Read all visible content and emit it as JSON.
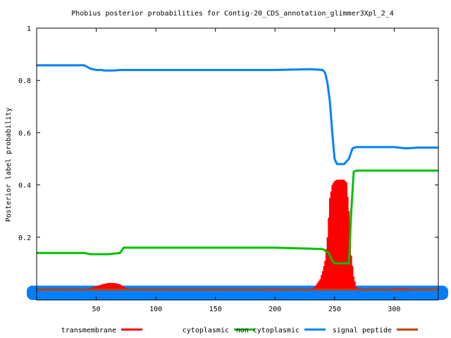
{
  "chart_data": {
    "type": "line",
    "title": "Phobius posterior probabilities for Contig-20_CDS_annotation_glimmer3Xpl_2_4",
    "xlabel": "",
    "ylabel": "Posterior label probability",
    "xlim": [
      0,
      337
    ],
    "ylim": [
      -0.04,
      1.0
    ],
    "x_ticks": [
      50,
      100,
      150,
      200,
      250,
      300
    ],
    "y_ticks": [
      0.2,
      0.4,
      0.6,
      0.8,
      1
    ],
    "grid": false,
    "legend_position": "bottom",
    "series": [
      {
        "name": "transmembrane",
        "style": "impulses",
        "color": "#ff0000",
        "points": [
          [
            0,
            0.0
          ],
          [
            40,
            0.0
          ],
          [
            45,
            0.005
          ],
          [
            50,
            0.012
          ],
          [
            55,
            0.02
          ],
          [
            60,
            0.025
          ],
          [
            65,
            0.025
          ],
          [
            70,
            0.02
          ],
          [
            75,
            0.005
          ],
          [
            80,
            0.0
          ],
          [
            180,
            0.0
          ],
          [
            190,
            0.004
          ],
          [
            200,
            0.004
          ],
          [
            210,
            0.0
          ],
          [
            232,
            0.0
          ],
          [
            235,
            0.02
          ],
          [
            238,
            0.04
          ],
          [
            240,
            0.07
          ],
          [
            242,
            0.11
          ],
          [
            244,
            0.2
          ],
          [
            246,
            0.35
          ],
          [
            248,
            0.4
          ],
          [
            250,
            0.415
          ],
          [
            252,
            0.42
          ],
          [
            255,
            0.42
          ],
          [
            258,
            0.42
          ],
          [
            260,
            0.41
          ],
          [
            262,
            0.3
          ],
          [
            264,
            0.13
          ],
          [
            266,
            0.05
          ],
          [
            268,
            0.01
          ],
          [
            270,
            0.0
          ],
          [
            290,
            0.0
          ],
          [
            300,
            0.005
          ],
          [
            310,
            0.005
          ],
          [
            320,
            0.0
          ],
          [
            337,
            0.0
          ]
        ]
      },
      {
        "name": "cytoplasmic",
        "style": "line",
        "color": "#00c000",
        "points": [
          [
            0,
            0.14
          ],
          [
            40,
            0.14
          ],
          [
            45,
            0.135
          ],
          [
            60,
            0.135
          ],
          [
            70,
            0.14
          ],
          [
            73,
            0.16
          ],
          [
            200,
            0.16
          ],
          [
            240,
            0.155
          ],
          [
            245,
            0.14
          ],
          [
            248,
            0.11
          ],
          [
            250,
            0.1
          ],
          [
            260,
            0.1
          ],
          [
            262,
            0.1
          ],
          [
            264,
            0.3
          ],
          [
            266,
            0.45
          ],
          [
            268,
            0.455
          ],
          [
            337,
            0.455
          ]
        ]
      },
      {
        "name": "non cytoplasmic",
        "style": "line",
        "color": "#0080ff",
        "points": [
          [
            0,
            0.858
          ],
          [
            40,
            0.858
          ],
          [
            45,
            0.845
          ],
          [
            50,
            0.84
          ],
          [
            55,
            0.84
          ],
          [
            56,
            0.838
          ],
          [
            65,
            0.838
          ],
          [
            70,
            0.84
          ],
          [
            100,
            0.84
          ],
          [
            200,
            0.84
          ],
          [
            230,
            0.843
          ],
          [
            240,
            0.84
          ],
          [
            242,
            0.83
          ],
          [
            244,
            0.79
          ],
          [
            246,
            0.72
          ],
          [
            248,
            0.6
          ],
          [
            250,
            0.5
          ],
          [
            252,
            0.48
          ],
          [
            258,
            0.48
          ],
          [
            262,
            0.5
          ],
          [
            265,
            0.54
          ],
          [
            268,
            0.545
          ],
          [
            300,
            0.545
          ],
          [
            310,
            0.54
          ],
          [
            320,
            0.543
          ],
          [
            337,
            0.543
          ]
        ]
      },
      {
        "name": "signal peptide",
        "style": "line",
        "color": "#c04000",
        "points": [
          [
            0,
            0.0
          ],
          [
            337,
            0.0
          ]
        ]
      }
    ],
    "band": {
      "color": "#0080ff",
      "ymin": -0.04,
      "ymax": 0.015
    }
  }
}
